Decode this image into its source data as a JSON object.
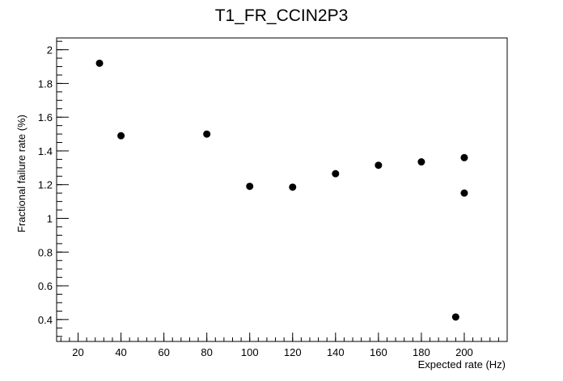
{
  "chart_data": {
    "type": "scatter",
    "title": "T1_FR_CCIN2P3",
    "xlabel": "Expected rate (Hz)",
    "ylabel": "Fractional failure rate (%)",
    "xlim": [
      10,
      220
    ],
    "ylim": [
      0.27,
      2.07
    ],
    "x_ticks": [
      20,
      40,
      60,
      80,
      100,
      120,
      140,
      160,
      180,
      200
    ],
    "y_ticks": [
      0.4,
      0.6,
      0.8,
      1,
      1.2,
      1.4,
      1.6,
      1.8,
      2
    ],
    "x_tick_labels": [
      "20",
      "40",
      "60",
      "80",
      "100",
      "120",
      "140",
      "160",
      "180",
      "200"
    ],
    "y_tick_labels": [
      "0.4",
      "0.6",
      "0.8",
      "1",
      "1.2",
      "1.4",
      "1.6",
      "1.8",
      "2"
    ],
    "x_minor_step": 4,
    "y_minor_step": 0.05,
    "grid": false,
    "marker_color": "#000000",
    "points": [
      {
        "x": 30,
        "y": 1.92
      },
      {
        "x": 40,
        "y": 1.49
      },
      {
        "x": 80,
        "y": 1.5
      },
      {
        "x": 100,
        "y": 1.19
      },
      {
        "x": 120,
        "y": 1.185
      },
      {
        "x": 140,
        "y": 1.265
      },
      {
        "x": 160,
        "y": 1.315
      },
      {
        "x": 180,
        "y": 1.335
      },
      {
        "x": 196,
        "y": 0.415
      },
      {
        "x": 200,
        "y": 1.36
      },
      {
        "x": 200,
        "y": 1.15
      }
    ]
  }
}
